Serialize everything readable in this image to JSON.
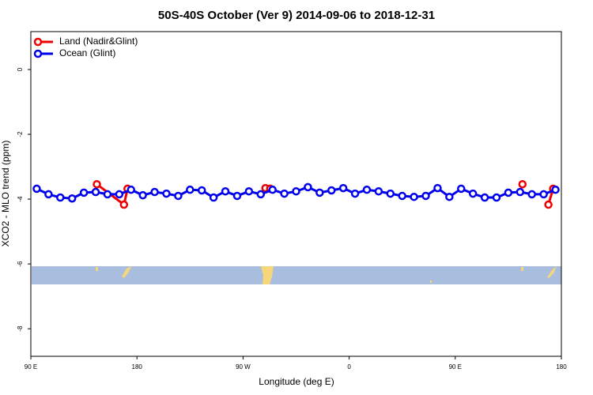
{
  "chart_data": {
    "type": "line",
    "title": "50S-40S October (Ver 9)   2014-09-06 to 2018-12-31",
    "x_label": "Longitude (deg E)",
    "y_label": "XCO2 - MLO trend (ppm)",
    "xlim": [
      90,
      540
    ],
    "ylim": [
      -8.85,
      1.17
    ],
    "xticks": [
      {
        "value": 90,
        "label": "90 E"
      },
      {
        "value": 180,
        "label": "180"
      },
      {
        "value": 270,
        "label": "90 W"
      },
      {
        "value": 360,
        "label": "0"
      },
      {
        "value": 450,
        "label": "90 E"
      },
      {
        "value": 540,
        "label": "180"
      }
    ],
    "yticks": [
      0,
      -2,
      -4,
      -6,
      -8
    ],
    "legend": "top-left",
    "series": [
      {
        "name": "Land (Nadir&Glint)",
        "color": "#ee0000",
        "x": [
          146,
          169,
          172,
          null,
          289,
          293,
          null,
          507,
          null,
          529,
          533
        ],
        "values": [
          -3.54,
          -4.17,
          -3.68,
          null,
          -3.66,
          -3.68,
          null,
          -3.54,
          null,
          -4.17,
          -3.68
        ]
      },
      {
        "name": "Ocean (Glint)",
        "color": "#0000ee",
        "x": [
          95,
          105,
          115,
          125,
          135,
          145,
          155,
          165,
          175,
          185,
          195,
          205,
          215,
          225,
          235,
          245,
          255,
          265,
          275,
          285,
          295,
          305,
          315,
          325,
          335,
          345,
          355,
          365,
          375,
          385,
          395,
          405,
          415,
          425,
          435,
          445,
          455,
          465,
          475,
          485,
          495,
          505,
          515,
          525,
          535
        ],
        "values": [
          -3.68,
          -3.85,
          -3.95,
          -3.98,
          -3.8,
          -3.78,
          -3.85,
          -3.85,
          -3.71,
          -3.88,
          -3.78,
          -3.83,
          -3.9,
          -3.71,
          -3.73,
          -3.95,
          -3.76,
          -3.9,
          -3.76,
          -3.85,
          -3.71,
          -3.83,
          -3.76,
          -3.63,
          -3.8,
          -3.73,
          -3.66,
          -3.83,
          -3.71,
          -3.76,
          -3.83,
          -3.9,
          -3.93,
          -3.9,
          -3.66,
          -3.93,
          -3.68,
          -3.83,
          -3.95,
          -3.95,
          -3.8,
          -3.78,
          -3.85,
          -3.85,
          -3.71
        ]
      }
    ]
  }
}
